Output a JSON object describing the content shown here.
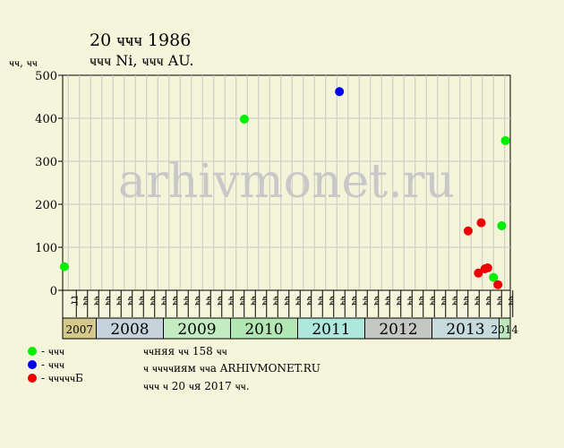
{
  "chart_data": {
    "type": "scatter",
    "title": "20 ҹҹҹ 1986",
    "subtitle": "ҹҹҹ Ni, ҹҹҹ AU.",
    "ylabel": "ҹҹ, ҹҹ",
    "xlabel": "",
    "ylim": [
      0,
      500
    ],
    "yticks": [
      0,
      100,
      200,
      300,
      400,
      500
    ],
    "grid": true,
    "watermark": "arhivmonet.ru",
    "x_axis": {
      "start": "2007-07",
      "end": "2014-03",
      "months": [
        {
          "month": "2007-08",
          "label": "ӷӷ"
        },
        {
          "month": "2007-10",
          "label": "ҹҹ"
        },
        {
          "month": "2007-12",
          "label": "ҹҹ"
        },
        {
          "month": "2008-02",
          "label": "ҹҹ"
        },
        {
          "month": "2008-04",
          "label": "ҹҹ"
        },
        {
          "month": "2008-06",
          "label": "ҹҹ"
        },
        {
          "month": "2008-08",
          "label": "ҹҹ"
        },
        {
          "month": "2008-10",
          "label": "ҹҹ"
        },
        {
          "month": "2008-12",
          "label": "ҹҹ"
        },
        {
          "month": "2009-02",
          "label": "ҹҹ"
        },
        {
          "month": "2009-04",
          "label": "ҹҹ"
        },
        {
          "month": "2009-06",
          "label": "ҹҹ"
        },
        {
          "month": "2009-08",
          "label": "ҹҹ"
        },
        {
          "month": "2009-10",
          "label": "ҹҹ"
        },
        {
          "month": "2009-12",
          "label": "ҹҹ"
        },
        {
          "month": "2010-02",
          "label": "ҹҹ"
        },
        {
          "month": "2010-04",
          "label": "ҹҹ"
        },
        {
          "month": "2010-06",
          "label": "ҹҹ"
        },
        {
          "month": "2010-08",
          "label": "ҹҹ"
        },
        {
          "month": "2010-10",
          "label": "ҹҹ"
        },
        {
          "month": "2010-12",
          "label": "ҹҹ"
        },
        {
          "month": "2011-02",
          "label": "ҹҹ"
        },
        {
          "month": "2011-04",
          "label": "ҹҹ"
        },
        {
          "month": "2011-06",
          "label": "ҹҹ"
        },
        {
          "month": "2011-08",
          "label": "ҹҹ"
        },
        {
          "month": "2011-10",
          "label": "ҹҹ"
        },
        {
          "month": "2011-12",
          "label": "ҹҹ"
        },
        {
          "month": "2012-02",
          "label": "ҹҹ"
        },
        {
          "month": "2012-04",
          "label": "ҹҹ"
        },
        {
          "month": "2012-06",
          "label": "ҹҹ"
        },
        {
          "month": "2012-08",
          "label": "ҹҹ"
        },
        {
          "month": "2012-10",
          "label": "ҹҹ"
        },
        {
          "month": "2012-12",
          "label": "ҹҹ"
        },
        {
          "month": "2013-02",
          "label": "ҹҹ"
        },
        {
          "month": "2013-04",
          "label": "ҹҹ"
        },
        {
          "month": "2013-06",
          "label": "ҹҹ"
        },
        {
          "month": "2013-08",
          "label": "ҹҹ"
        },
        {
          "month": "2013-10",
          "label": "ҹҹ"
        },
        {
          "month": "2013-12",
          "label": "ҹҹ"
        },
        {
          "month": "2014-02",
          "label": "ҹҹ"
        }
      ],
      "years": [
        {
          "label": "2007",
          "start": "2007-07",
          "end": "2008-01",
          "color": "#d4c88c"
        },
        {
          "label": "2008",
          "start": "2008-01",
          "end": "2009-01",
          "color": "#c7d3dc"
        },
        {
          "label": "2009",
          "start": "2009-01",
          "end": "2010-01",
          "color": "#c3ecc3"
        },
        {
          "label": "2010",
          "start": "2010-01",
          "end": "2011-01",
          "color": "#b2e6b2"
        },
        {
          "label": "2011",
          "start": "2011-01",
          "end": "2012-01",
          "color": "#aee8dc"
        },
        {
          "label": "2012",
          "start": "2012-01",
          "end": "2013-01",
          "color": "#c4c7c2"
        },
        {
          "label": "2013",
          "start": "2013-01",
          "end": "2014-01",
          "color": "#c6dcdc"
        },
        {
          "label": "2014",
          "start": "2014-01",
          "end": "2014-03",
          "color": "#bde8bd"
        }
      ]
    },
    "series": [
      {
        "color": "#00ee00",
        "points": [
          {
            "x": "2007-07-10",
            "y": 55
          },
          {
            "x": "2010-03-15",
            "y": 398
          },
          {
            "x": "2013-12-01",
            "y": 30
          },
          {
            "x": "2014-01-15",
            "y": 150
          },
          {
            "x": "2014-02-05",
            "y": 348
          }
        ]
      },
      {
        "color": "#0000ee",
        "points": [
          {
            "x": "2011-08-15",
            "y": 462
          }
        ]
      },
      {
        "color": "#ee0000",
        "points": [
          {
            "x": "2013-07-15",
            "y": 138
          },
          {
            "x": "2013-09-10",
            "y": 40
          },
          {
            "x": "2013-09-25",
            "y": 157
          },
          {
            "x": "2013-10-15",
            "y": 50
          },
          {
            "x": "2013-10-30",
            "y": 52
          },
          {
            "x": "2013-12-25",
            "y": 13
          }
        ]
      }
    ],
    "legend": {
      "placement": "bottom-left",
      "entries": [
        "- ҹҹҹ",
        "- ҹҹҹ",
        "- ҹҹҹҹҹБ"
      ]
    },
    "notes": [
      "ҹҹняя ҹҹ 158 ҹҹ",
      "ҹ ҹҹҹҹиям ҹҹа ARHIVMONET.RU",
      "ҹҹҹ ҹ 20 ҹя 2017 ҹҹ."
    ]
  }
}
